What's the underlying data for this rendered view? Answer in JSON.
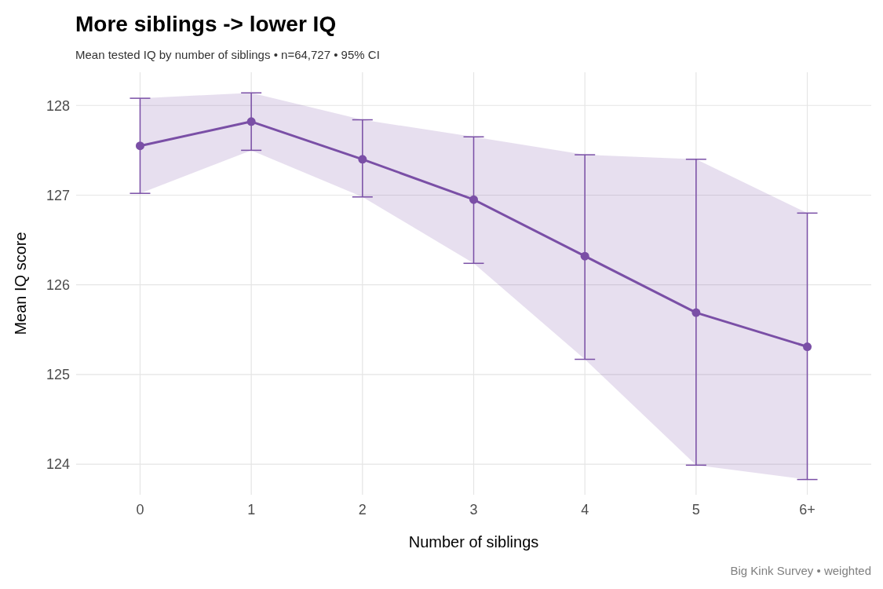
{
  "chart_data": {
    "type": "line",
    "title": "More siblings -> lower IQ",
    "subtitle": "Mean tested IQ by number of siblings  •  n=64,727  •  95% CI",
    "xlabel": "Number of siblings",
    "ylabel": "Mean IQ score",
    "categories": [
      "0",
      "1",
      "2",
      "3",
      "4",
      "5",
      "6+"
    ],
    "series": [
      {
        "color": "#7a4fa6",
        "values": [
          127.55,
          127.82,
          127.4,
          126.95,
          126.32,
          125.69,
          125.31
        ],
        "lower": [
          127.02,
          127.5,
          126.98,
          126.24,
          125.17,
          123.99,
          123.83
        ],
        "upper": [
          128.08,
          128.14,
          127.84,
          127.65,
          127.45,
          127.4,
          126.8
        ],
        "errors": [
          [
            127.02,
            128.08
          ],
          [
            127.5,
            128.14
          ],
          [
            126.98,
            127.84
          ],
          [
            126.24,
            127.65
          ],
          [
            125.17,
            127.45
          ],
          [
            123.99,
            127.4
          ],
          [
            123.83,
            126.8
          ]
        ]
      }
    ],
    "ylim": [
      123.66,
      128.37
    ],
    "yticks": [
      124,
      125,
      126,
      127,
      128
    ],
    "grid": true,
    "marker": "circle",
    "line_style": "solid",
    "annotations": [
      "Big Kink Survey  •  weighted"
    ]
  }
}
